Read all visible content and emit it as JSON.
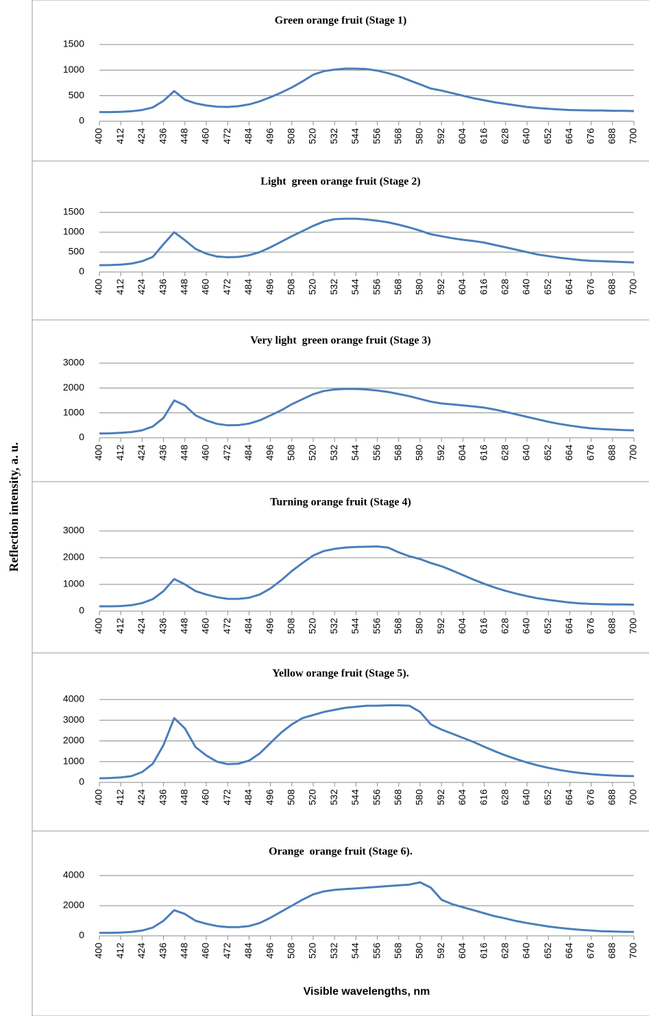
{
  "ylabel": "Reflection intensity, a. u.",
  "xlabel": "Visible wavelengths, nm",
  "chart_data": [
    {
      "type": "line",
      "title": "Green orange fruit (Stage 1)",
      "x": [
        400,
        406,
        412,
        418,
        424,
        430,
        436,
        442,
        448,
        454,
        460,
        466,
        472,
        478,
        484,
        490,
        496,
        502,
        508,
        514,
        520,
        526,
        532,
        538,
        544,
        550,
        556,
        562,
        568,
        574,
        580,
        586,
        592,
        598,
        604,
        610,
        616,
        622,
        628,
        634,
        640,
        646,
        652,
        658,
        664,
        670,
        676,
        682,
        688,
        694,
        700
      ],
      "series": [
        {
          "name": "Stage 1",
          "color": "#4a7ebb",
          "values": [
            180,
            180,
            185,
            195,
            220,
            270,
            400,
            590,
            420,
            350,
            310,
            285,
            280,
            295,
            330,
            390,
            470,
            560,
            660,
            780,
            910,
            980,
            1010,
            1030,
            1030,
            1020,
            990,
            940,
            880,
            800,
            720,
            640,
            600,
            550,
            500,
            450,
            410,
            370,
            340,
            310,
            280,
            260,
            245,
            230,
            220,
            215,
            210,
            210,
            205,
            205,
            200
          ]
        }
      ],
      "xlim": [
        400,
        700
      ],
      "xticks": [
        400,
        412,
        424,
        436,
        448,
        460,
        472,
        484,
        496,
        508,
        520,
        532,
        544,
        556,
        568,
        580,
        592,
        604,
        616,
        628,
        640,
        652,
        664,
        676,
        688,
        700
      ],
      "ylim": [
        0,
        1500
      ],
      "yticks": [
        0,
        500,
        1000,
        1500
      ],
      "grid": true
    },
    {
      "type": "line",
      "title": "Light  green orange fruit (Stage 2)",
      "x": [
        400,
        406,
        412,
        418,
        424,
        430,
        436,
        442,
        448,
        454,
        460,
        466,
        472,
        478,
        484,
        490,
        496,
        502,
        508,
        514,
        520,
        526,
        532,
        538,
        544,
        550,
        556,
        562,
        568,
        574,
        580,
        586,
        592,
        598,
        604,
        610,
        616,
        622,
        628,
        634,
        640,
        646,
        652,
        658,
        664,
        670,
        676,
        682,
        688,
        694,
        700
      ],
      "series": [
        {
          "name": "Stage 2",
          "color": "#4a7ebb",
          "values": [
            170,
            175,
            185,
            210,
            270,
            380,
            700,
            1000,
            800,
            580,
            460,
            390,
            370,
            380,
            420,
            500,
            620,
            760,
            900,
            1030,
            1160,
            1270,
            1330,
            1340,
            1340,
            1320,
            1290,
            1250,
            1190,
            1120,
            1040,
            950,
            900,
            850,
            810,
            780,
            740,
            680,
            620,
            560,
            500,
            440,
            400,
            360,
            330,
            300,
            280,
            270,
            260,
            250,
            240
          ]
        }
      ],
      "xlim": [
        400,
        700
      ],
      "xticks": [
        400,
        412,
        424,
        436,
        448,
        460,
        472,
        484,
        496,
        508,
        520,
        532,
        544,
        556,
        568,
        580,
        592,
        604,
        616,
        628,
        640,
        652,
        664,
        676,
        688,
        700
      ],
      "ylim": [
        0,
        1500
      ],
      "yticks": [
        0,
        500,
        1000,
        1500
      ],
      "grid": true
    },
    {
      "type": "line",
      "title": "Very light  green orange fruit (Stage 3)",
      "x": [
        400,
        406,
        412,
        418,
        424,
        430,
        436,
        442,
        448,
        454,
        460,
        466,
        472,
        478,
        484,
        490,
        496,
        502,
        508,
        514,
        520,
        526,
        532,
        538,
        544,
        550,
        556,
        562,
        568,
        574,
        580,
        586,
        592,
        598,
        604,
        610,
        616,
        622,
        628,
        634,
        640,
        646,
        652,
        658,
        664,
        670,
        676,
        682,
        688,
        694,
        700
      ],
      "series": [
        {
          "name": "Stage 3",
          "color": "#4a7ebb",
          "values": [
            170,
            180,
            200,
            230,
            300,
            450,
            800,
            1500,
            1300,
            900,
            700,
            560,
            500,
            510,
            570,
            700,
            900,
            1100,
            1350,
            1550,
            1750,
            1880,
            1940,
            1960,
            1960,
            1940,
            1900,
            1840,
            1760,
            1670,
            1560,
            1450,
            1380,
            1340,
            1300,
            1260,
            1210,
            1130,
            1040,
            940,
            840,
            740,
            640,
            560,
            490,
            430,
            380,
            350,
            330,
            310,
            300
          ]
        }
      ],
      "xlim": [
        400,
        700
      ],
      "xticks": [
        400,
        412,
        424,
        436,
        448,
        460,
        472,
        484,
        496,
        508,
        520,
        532,
        544,
        556,
        568,
        580,
        592,
        604,
        616,
        628,
        640,
        652,
        664,
        676,
        688,
        700
      ],
      "ylim": [
        0,
        3000
      ],
      "yticks": [
        0,
        1000,
        2000,
        3000
      ],
      "grid": true
    },
    {
      "type": "line",
      "title": "Turning orange fruit (Stage 4)",
      "x": [
        400,
        406,
        412,
        418,
        424,
        430,
        436,
        442,
        448,
        454,
        460,
        466,
        472,
        478,
        484,
        490,
        496,
        502,
        508,
        514,
        520,
        526,
        532,
        538,
        544,
        550,
        556,
        562,
        568,
        574,
        580,
        586,
        592,
        598,
        604,
        610,
        616,
        622,
        628,
        634,
        640,
        646,
        652,
        658,
        664,
        670,
        676,
        682,
        688,
        694,
        700
      ],
      "series": [
        {
          "name": "Stage 4",
          "color": "#4a7ebb",
          "values": [
            180,
            180,
            190,
            220,
            300,
            450,
            750,
            1200,
            1000,
            750,
            620,
            520,
            460,
            460,
            500,
            620,
            850,
            1150,
            1500,
            1800,
            2080,
            2250,
            2330,
            2380,
            2400,
            2410,
            2420,
            2380,
            2200,
            2050,
            1950,
            1800,
            1680,
            1520,
            1350,
            1180,
            1020,
            880,
            760,
            650,
            560,
            480,
            420,
            370,
            320,
            290,
            270,
            260,
            250,
            250,
            240
          ]
        }
      ],
      "xlim": [
        400,
        700
      ],
      "xticks": [
        400,
        412,
        424,
        436,
        448,
        460,
        472,
        484,
        496,
        508,
        520,
        532,
        544,
        556,
        568,
        580,
        592,
        604,
        616,
        628,
        640,
        652,
        664,
        676,
        688,
        700
      ],
      "ylim": [
        0,
        3000
      ],
      "yticks": [
        0,
        1000,
        2000,
        3000
      ],
      "grid": true
    },
    {
      "type": "line",
      "title": "Yellow orange fruit (Stage 5).",
      "x": [
        400,
        406,
        412,
        418,
        424,
        430,
        436,
        442,
        448,
        454,
        460,
        466,
        472,
        478,
        484,
        490,
        496,
        502,
        508,
        514,
        520,
        526,
        532,
        538,
        544,
        550,
        556,
        562,
        568,
        574,
        580,
        586,
        592,
        598,
        604,
        610,
        616,
        622,
        628,
        634,
        640,
        646,
        652,
        658,
        664,
        670,
        676,
        682,
        688,
        694,
        700
      ],
      "series": [
        {
          "name": "Stage 5",
          "color": "#4a7ebb",
          "values": [
            200,
            210,
            240,
            300,
            500,
            900,
            1800,
            3100,
            2600,
            1700,
            1300,
            1000,
            880,
            900,
            1050,
            1400,
            1900,
            2400,
            2800,
            3100,
            3250,
            3400,
            3500,
            3600,
            3650,
            3700,
            3700,
            3720,
            3720,
            3700,
            3400,
            2800,
            2550,
            2350,
            2150,
            1950,
            1720,
            1500,
            1300,
            1120,
            960,
            820,
            700,
            600,
            520,
            450,
            400,
            360,
            330,
            310,
            300
          ]
        }
      ],
      "xlim": [
        400,
        700
      ],
      "xticks": [
        400,
        412,
        424,
        436,
        448,
        460,
        472,
        484,
        496,
        508,
        520,
        532,
        544,
        556,
        568,
        580,
        592,
        604,
        616,
        628,
        640,
        652,
        664,
        676,
        688,
        700
      ],
      "ylim": [
        0,
        4000
      ],
      "yticks": [
        0,
        1000,
        2000,
        3000,
        4000
      ],
      "grid": true
    },
    {
      "type": "line",
      "title": "Orange  orange fruit (Stage 6).",
      "x": [
        400,
        406,
        412,
        418,
        424,
        430,
        436,
        442,
        448,
        454,
        460,
        466,
        472,
        478,
        484,
        490,
        496,
        502,
        508,
        514,
        520,
        526,
        532,
        538,
        544,
        550,
        556,
        562,
        568,
        574,
        580,
        586,
        592,
        598,
        604,
        610,
        616,
        622,
        628,
        634,
        640,
        646,
        652,
        658,
        664,
        670,
        676,
        682,
        688,
        694,
        700
      ],
      "series": [
        {
          "name": "Stage 6",
          "color": "#4a7ebb",
          "values": [
            200,
            200,
            220,
            260,
            350,
            550,
            1000,
            1700,
            1450,
            1000,
            800,
            650,
            580,
            580,
            650,
            850,
            1200,
            1600,
            2000,
            2400,
            2750,
            2950,
            3050,
            3100,
            3150,
            3200,
            3250,
            3300,
            3350,
            3400,
            3550,
            3200,
            2400,
            2100,
            1900,
            1700,
            1500,
            1300,
            1150,
            980,
            850,
            730,
            620,
            530,
            460,
            400,
            350,
            310,
            290,
            270,
            260
          ]
        }
      ],
      "xlim": [
        400,
        700
      ],
      "xticks": [
        400,
        412,
        424,
        436,
        448,
        460,
        472,
        484,
        496,
        508,
        520,
        532,
        544,
        556,
        568,
        580,
        592,
        604,
        616,
        628,
        640,
        652,
        664,
        676,
        688,
        700
      ],
      "ylim": [
        0,
        4000
      ],
      "yticks": [
        0,
        2000,
        4000
      ],
      "grid": true
    }
  ]
}
